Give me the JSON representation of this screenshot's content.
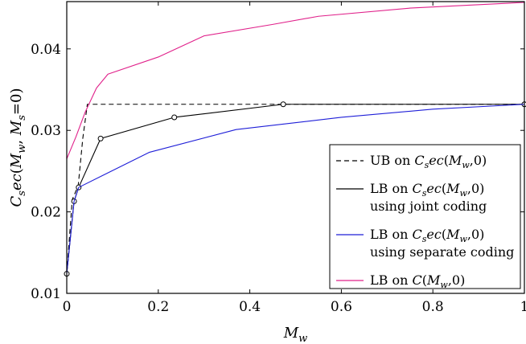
{
  "chart_data": {
    "type": "line",
    "title": "",
    "xlabel": "M_w",
    "ylabel": "C_sec(M_w, M_s = 0)",
    "xlim": [
      0,
      1
    ],
    "ylim": [
      0.01,
      0.0458
    ],
    "xticks": [
      0,
      0.2,
      0.4,
      0.6,
      0.8,
      1
    ],
    "xtick_labels": [
      "0",
      "0.2",
      "0.4",
      "0.6",
      "0.8",
      "1"
    ],
    "yticks": [
      0.01,
      0.02,
      0.03,
      0.04
    ],
    "ytick_labels": [
      "0.01",
      "0.02",
      "0.03",
      "0.04"
    ],
    "grid": false,
    "legend_position": "bottom-right",
    "series": [
      {
        "name": "UB on C_sec(M_w, 0)",
        "legend_lines": [
          "UB on C_sec(M_w, 0)"
        ],
        "color": "#000000",
        "dashed": true,
        "markers": false,
        "x": [
          0.0,
          0.012,
          0.025,
          0.035,
          0.045,
          1.0
        ],
        "y": [
          0.0124,
          0.0215,
          0.0232,
          0.029,
          0.0332,
          0.0332
        ]
      },
      {
        "name": "LB on C_sec(M_w, 0) using joint coding",
        "legend_lines": [
          "LB on C_sec(M_w, 0)",
          "using joint coding"
        ],
        "color": "#000000",
        "dashed": false,
        "markers": true,
        "x": [
          0.0,
          0.016,
          0.026,
          0.074,
          0.235,
          0.473,
          1.0
        ],
        "y": [
          0.0124,
          0.0213,
          0.023,
          0.029,
          0.0316,
          0.0332,
          0.0332
        ]
      },
      {
        "name": "LB on C_sec(M_w, 0) using separate coding",
        "legend_lines": [
          "LB on C_sec(M_w, 0)",
          "using separate coding"
        ],
        "color": "#1f1fd8",
        "dashed": false,
        "markers": false,
        "x": [
          0.0,
          0.016,
          0.026,
          0.18,
          0.37,
          0.6,
          0.8,
          1.0
        ],
        "y": [
          0.0124,
          0.0213,
          0.023,
          0.0273,
          0.0301,
          0.0316,
          0.0326,
          0.0332
        ]
      },
      {
        "name": "LB on C(M_w, 0)",
        "legend_lines": [
          "LB on C(M_w, 0)"
        ],
        "color": "#e0208a",
        "dashed": false,
        "markers": false,
        "x": [
          0.0,
          0.02,
          0.04,
          0.065,
          0.09,
          0.2,
          0.3,
          0.45,
          0.55,
          0.75,
          1.0
        ],
        "y": [
          0.0265,
          0.0292,
          0.0322,
          0.0352,
          0.0369,
          0.039,
          0.0416,
          0.043,
          0.044,
          0.045,
          0.0457
        ]
      }
    ]
  }
}
